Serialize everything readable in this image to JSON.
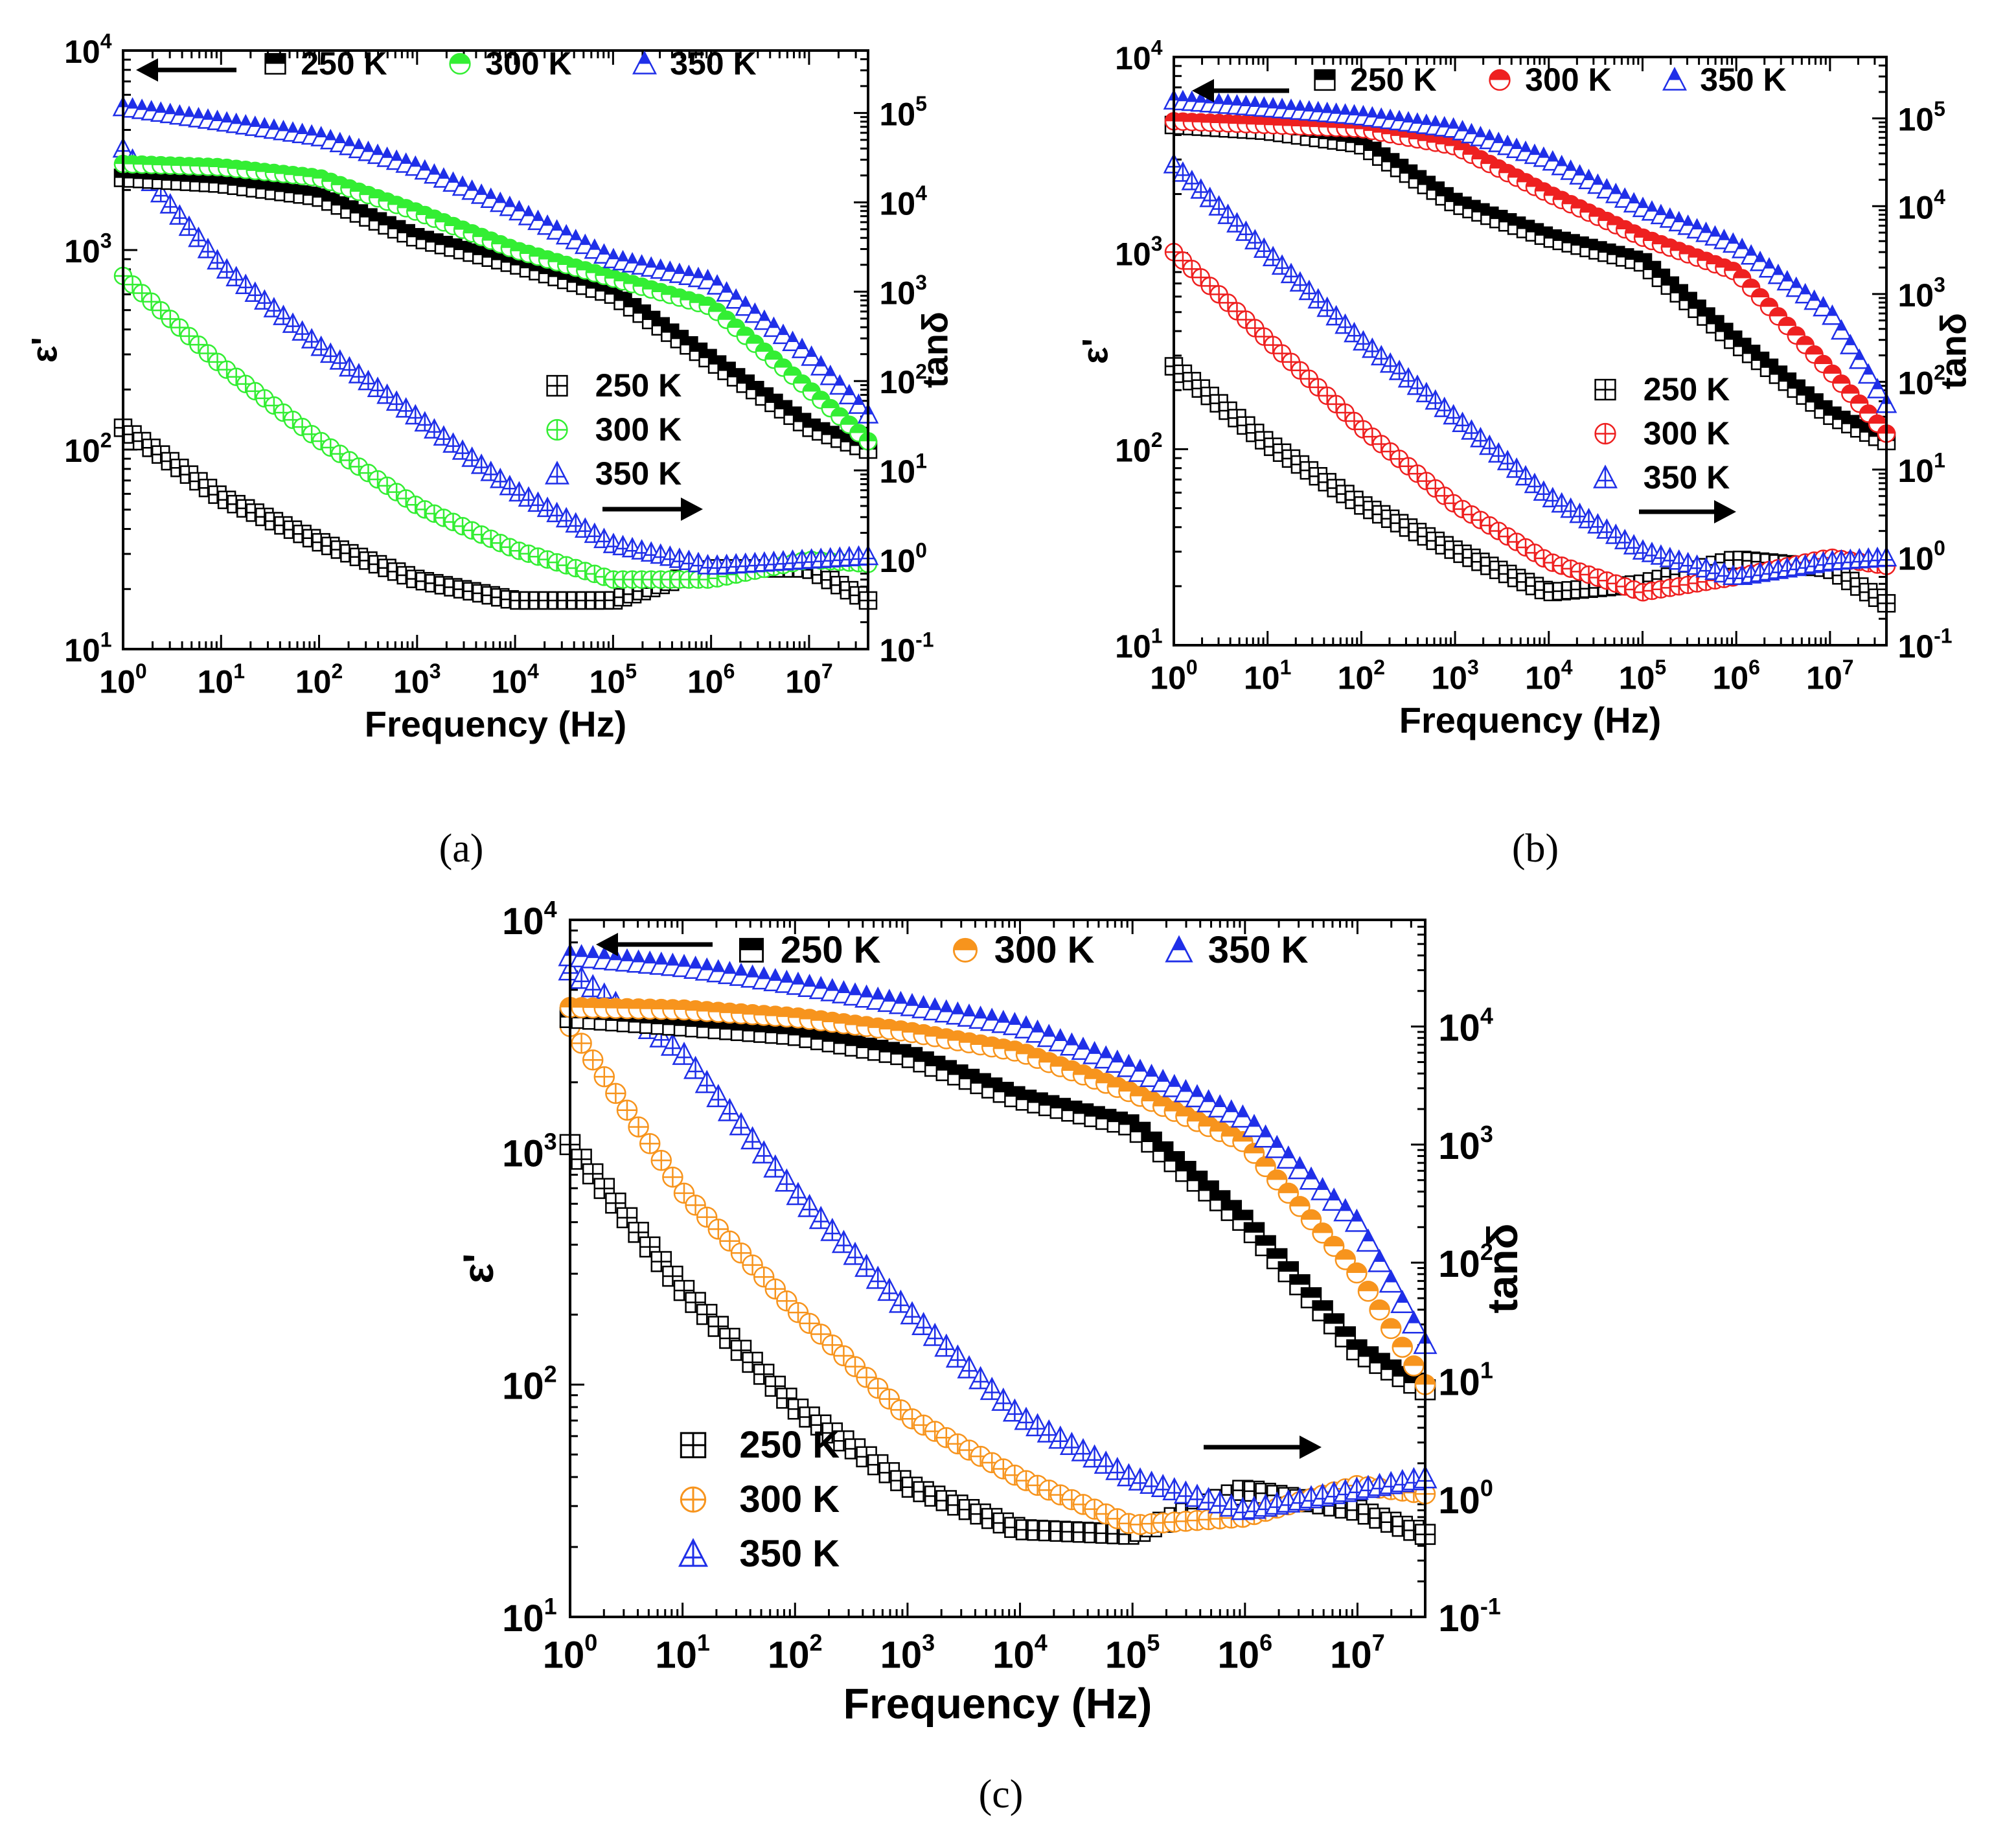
{
  "colors": {
    "250": "#000000",
    "300a": "#33ee33",
    "300b": "#ee2020",
    "300c": "#f7941d",
    "350": "#1f2fe8"
  },
  "chart_data": [
    {
      "id": "a",
      "caption": "(a)",
      "type": "scatter",
      "xlabel": "Frequency (Hz)",
      "ylabel": "ε'",
      "y2label": "tanδ",
      "xscale": "log",
      "yscale": "log",
      "y2scale": "log",
      "xlim": [
        1,
        40000000
      ],
      "ylim": [
        10,
        10000
      ],
      "y2lim": [
        0.1,
        500000
      ],
      "xticks": [
        {
          "v": 1,
          "base": "10",
          "exp": "0"
        },
        {
          "v": 10,
          "base": "10",
          "exp": "1"
        },
        {
          "v": 100,
          "base": "10",
          "exp": "2"
        },
        {
          "v": 1000,
          "base": "10",
          "exp": "3"
        },
        {
          "v": 10000,
          "base": "10",
          "exp": "4"
        },
        {
          "v": 100000,
          "base": "10",
          "exp": "5"
        },
        {
          "v": 1000000,
          "base": "10",
          "exp": "6"
        },
        {
          "v": 10000000,
          "base": "10",
          "exp": "7"
        }
      ],
      "yticks": [
        {
          "v": 10,
          "base": "10",
          "exp": "1"
        },
        {
          "v": 100,
          "base": "10",
          "exp": "2"
        },
        {
          "v": 1000,
          "base": "10",
          "exp": "3"
        },
        {
          "v": 10000,
          "base": "10",
          "exp": "4"
        }
      ],
      "y2ticks": [
        {
          "v": 0.1,
          "base": "10",
          "exp": "-1"
        },
        {
          "v": 1,
          "base": "10",
          "exp": "0"
        },
        {
          "v": 10,
          "base": "10",
          "exp": "1"
        },
        {
          "v": 100,
          "base": "10",
          "exp": "2"
        },
        {
          "v": 1000,
          "base": "10",
          "exp": "3"
        },
        {
          "v": 10000,
          "base": "10",
          "exp": "4"
        },
        {
          "v": 100000,
          "base": "10",
          "exp": "5"
        }
      ],
      "legend_top": [
        {
          "label": "250 K",
          "color_key": "250",
          "marker": "square-half"
        },
        {
          "label": "300 K",
          "color_key": "300a",
          "marker": "circle-half"
        },
        {
          "label": "350 K",
          "color_key": "350",
          "marker": "triangle-half"
        }
      ],
      "legend_bottom": [
        {
          "label": "250 K",
          "color_key": "250",
          "marker": "square-cross"
        },
        {
          "label": "300 K",
          "color_key": "300a",
          "marker": "circle-cross"
        },
        {
          "label": "350 K",
          "color_key": "350",
          "marker": "triangle-cross"
        }
      ],
      "eps_series": [
        {
          "name": "250 K",
          "color_key": "250",
          "marker": "square-half",
          "x": [
            1,
            10,
            100,
            1000,
            10000,
            100000,
            1000000,
            10000000,
            40000000
          ],
          "y": [
            2300,
            2150,
            1850,
            1150,
            850,
            600,
            280,
            130,
            100
          ]
        },
        {
          "name": "300 K",
          "color_key": "300a",
          "marker": "circle-half",
          "x": [
            1,
            10,
            100,
            1000,
            10000,
            100000,
            1000000,
            10000000,
            40000000
          ],
          "y": [
            2700,
            2600,
            2300,
            1550,
            1000,
            720,
            520,
            200,
            110
          ]
        },
        {
          "name": "350 K",
          "color_key": "350",
          "marker": "triangle-half",
          "x": [
            1,
            10,
            100,
            1000,
            10000,
            100000,
            1000000,
            10000000,
            40000000
          ],
          "y": [
            5200,
            4400,
            3700,
            2600,
            1600,
            900,
            700,
            300,
            150
          ]
        }
      ],
      "tan_series": [
        {
          "name": "250 K",
          "color_key": "250",
          "marker": "square-cross",
          "x": [
            1,
            10,
            100,
            1000,
            10000,
            100000,
            1000000,
            10000000,
            40000000
          ],
          "y": [
            30,
            5,
            1.6,
            0.6,
            0.35,
            0.35,
            0.8,
            0.8,
            0.35
          ]
        },
        {
          "name": "300 K",
          "color_key": "300a",
          "marker": "circle-cross",
          "x": [
            1,
            10,
            100,
            1000,
            10000,
            100000,
            1000000,
            10000000,
            40000000
          ],
          "y": [
            1500,
            150,
            22,
            4,
            1.3,
            0.6,
            0.6,
            1,
            0.9
          ]
        },
        {
          "name": "350 K",
          "color_key": "350",
          "marker": "triangle-cross",
          "x": [
            1,
            10,
            100,
            1000,
            10000,
            100000,
            1000000,
            10000000,
            40000000
          ],
          "y": [
            40000,
            2000,
            250,
            40,
            6,
            1.5,
            0.85,
            1,
            1.1
          ]
        }
      ]
    },
    {
      "id": "b",
      "caption": "(b)",
      "type": "scatter",
      "xlabel": "Frequency (Hz)",
      "ylabel": "ε'",
      "y2label": "tanδ",
      "xscale": "log",
      "yscale": "log",
      "y2scale": "log",
      "xlim": [
        1,
        40000000
      ],
      "ylim": [
        10,
        10000
      ],
      "y2lim": [
        0.1,
        500000
      ],
      "xticks": [
        {
          "v": 1,
          "base": "10",
          "exp": "0"
        },
        {
          "v": 10,
          "base": "10",
          "exp": "1"
        },
        {
          "v": 100,
          "base": "10",
          "exp": "2"
        },
        {
          "v": 1000,
          "base": "10",
          "exp": "3"
        },
        {
          "v": 10000,
          "base": "10",
          "exp": "4"
        },
        {
          "v": 100000,
          "base": "10",
          "exp": "5"
        },
        {
          "v": 1000000,
          "base": "10",
          "exp": "6"
        },
        {
          "v": 10000000,
          "base": "10",
          "exp": "7"
        }
      ],
      "yticks": [
        {
          "v": 10,
          "base": "10",
          "exp": "1"
        },
        {
          "v": 100,
          "base": "10",
          "exp": "2"
        },
        {
          "v": 1000,
          "base": "10",
          "exp": "3"
        },
        {
          "v": 10000,
          "base": "10",
          "exp": "4"
        }
      ],
      "y2ticks": [
        {
          "v": 0.1,
          "base": "10",
          "exp": "-1"
        },
        {
          "v": 1,
          "base": "10",
          "exp": "0"
        },
        {
          "v": 10,
          "base": "10",
          "exp": "1"
        },
        {
          "v": 100,
          "base": "10",
          "exp": "2"
        },
        {
          "v": 1000,
          "base": "10",
          "exp": "3"
        },
        {
          "v": 10000,
          "base": "10",
          "exp": "4"
        },
        {
          "v": 100000,
          "base": "10",
          "exp": "5"
        }
      ],
      "legend_top": [
        {
          "label": "250 K",
          "color_key": "250",
          "marker": "square-half"
        },
        {
          "label": "300 K",
          "color_key": "300b",
          "marker": "circle-half"
        },
        {
          "label": "350 K",
          "color_key": "350",
          "marker": "triangle-half"
        }
      ],
      "legend_bottom": [
        {
          "label": "250 K",
          "color_key": "250",
          "marker": "square-cross"
        },
        {
          "label": "300 K",
          "color_key": "300b",
          "marker": "circle-cross"
        },
        {
          "label": "350 K",
          "color_key": "350",
          "marker": "triangle-cross"
        }
      ],
      "eps_series": [
        {
          "name": "250 K",
          "color_key": "250",
          "marker": "square-half",
          "x": [
            1,
            10,
            100,
            1000,
            10000,
            100000,
            1000000,
            10000000,
            40000000
          ],
          "y": [
            4500,
            4200,
            3600,
            1800,
            1200,
            900,
            350,
            150,
            110
          ]
        },
        {
          "name": "300 K",
          "color_key": "300b",
          "marker": "circle-half",
          "x": [
            1,
            10,
            100,
            1000,
            10000,
            100000,
            1000000,
            10000000,
            40000000
          ],
          "y": [
            4700,
            4500,
            4300,
            3500,
            2000,
            1200,
            800,
            250,
            120
          ]
        },
        {
          "name": "350 K",
          "color_key": "350",
          "marker": "triangle-half",
          "x": [
            1,
            10,
            100,
            1000,
            10000,
            100000,
            1000000,
            10000000,
            40000000
          ],
          "y": [
            6000,
            5500,
            5000,
            4300,
            3000,
            1700,
            1100,
            500,
            170
          ]
        }
      ],
      "tan_series": [
        {
          "name": "250 K",
          "color_key": "250",
          "marker": "square-cross",
          "x": [
            1,
            10,
            100,
            1000,
            10000,
            100000,
            1000000,
            10000000,
            40000000
          ],
          "y": [
            150,
            20,
            4,
            1.2,
            0.4,
            0.5,
            0.95,
            0.75,
            0.3
          ]
        },
        {
          "name": "300 K",
          "color_key": "300b",
          "marker": "circle-cross",
          "x": [
            1,
            10,
            100,
            1000,
            10000,
            100000,
            1000000,
            10000000,
            40000000
          ],
          "y": [
            3000,
            300,
            30,
            4,
            0.9,
            0.4,
            0.6,
            1,
            0.8
          ]
        },
        {
          "name": "350 K",
          "color_key": "350",
          "marker": "triangle-cross",
          "x": [
            1,
            10,
            100,
            1000,
            10000,
            100000,
            1000000,
            10000000,
            40000000
          ],
          "y": [
            30000,
            3000,
            300,
            40,
            5,
            1.2,
            0.6,
            0.9,
            1
          ]
        }
      ]
    },
    {
      "id": "c",
      "caption": "(c)",
      "type": "scatter",
      "xlabel": "Frequency (Hz)",
      "ylabel": "ε'",
      "y2label": "tanδ",
      "xscale": "log",
      "yscale": "log",
      "y2scale": "log",
      "xlim": [
        1,
        40000000
      ],
      "ylim": [
        10,
        10000
      ],
      "y2lim": [
        0.1,
        80000
      ],
      "xticks": [
        {
          "v": 1,
          "base": "10",
          "exp": "0"
        },
        {
          "v": 10,
          "base": "10",
          "exp": "1"
        },
        {
          "v": 100,
          "base": "10",
          "exp": "2"
        },
        {
          "v": 1000,
          "base": "10",
          "exp": "3"
        },
        {
          "v": 10000,
          "base": "10",
          "exp": "4"
        },
        {
          "v": 100000,
          "base": "10",
          "exp": "5"
        },
        {
          "v": 1000000,
          "base": "10",
          "exp": "6"
        },
        {
          "v": 10000000,
          "base": "10",
          "exp": "7"
        }
      ],
      "yticks": [
        {
          "v": 10,
          "base": "10",
          "exp": "1"
        },
        {
          "v": 100,
          "base": "10",
          "exp": "2"
        },
        {
          "v": 1000,
          "base": "10",
          "exp": "3"
        },
        {
          "v": 10000,
          "base": "10",
          "exp": "4"
        }
      ],
      "y2ticks": [
        {
          "v": 0.1,
          "base": "10",
          "exp": "-1"
        },
        {
          "v": 1,
          "base": "10",
          "exp": "0"
        },
        {
          "v": 10,
          "base": "10",
          "exp": "1"
        },
        {
          "v": 100,
          "base": "10",
          "exp": "2"
        },
        {
          "v": 1000,
          "base": "10",
          "exp": "3"
        },
        {
          "v": 10000,
          "base": "10",
          "exp": "4"
        }
      ],
      "legend_top": [
        {
          "label": "250 K",
          "color_key": "250",
          "marker": "square-half"
        },
        {
          "label": "300 K",
          "color_key": "300c",
          "marker": "circle-half"
        },
        {
          "label": "350 K",
          "color_key": "350",
          "marker": "triangle-half"
        }
      ],
      "legend_bottom": [
        {
          "label": "250 K",
          "color_key": "250",
          "marker": "square-cross"
        },
        {
          "label": "300 K",
          "color_key": "300c",
          "marker": "circle-cross"
        },
        {
          "label": "350 K",
          "color_key": "350",
          "marker": "triangle-cross"
        }
      ],
      "eps_series": [
        {
          "name": "250 K",
          "color_key": "250",
          "marker": "square-half",
          "x": [
            1,
            10,
            100,
            1000,
            10000,
            100000,
            1000000,
            10000000,
            40000000
          ],
          "y": [
            3800,
            3500,
            3200,
            2600,
            1700,
            1300,
            500,
            140,
            95
          ]
        },
        {
          "name": "300 K",
          "color_key": "300c",
          "marker": "circle-half",
          "x": [
            1,
            10,
            100,
            1000,
            10000,
            100000,
            1000000,
            10000000,
            40000000
          ],
          "y": [
            4200,
            4100,
            3800,
            3300,
            2700,
            1800,
            1100,
            300,
            100
          ]
        },
        {
          "name": "350 K",
          "color_key": "350",
          "marker": "triangle-half",
          "x": [
            1,
            10,
            100,
            1000,
            10000,
            100000,
            1000000,
            10000000,
            40000000
          ],
          "y": [
            7000,
            6300,
            5300,
            4300,
            3500,
            2300,
            1400,
            500,
            150
          ]
        }
      ],
      "tan_series": [
        {
          "name": "250 K",
          "color_key": "250",
          "marker": "square-cross",
          "x": [
            1,
            10,
            100,
            1000,
            10000,
            100000,
            1000000,
            10000000,
            40000000
          ],
          "y": [
            1000,
            60,
            6,
            1.3,
            0.55,
            0.5,
            1.2,
            0.8,
            0.5
          ]
        },
        {
          "name": "300 K",
          "color_key": "300c",
          "marker": "circle-cross",
          "x": [
            1,
            10,
            100,
            1000,
            10000,
            100000,
            1000000,
            10000000,
            40000000
          ],
          "y": [
            10000,
            400,
            40,
            5,
            1.5,
            0.6,
            0.7,
            1.3,
            1.1
          ]
        },
        {
          "name": "350 K",
          "color_key": "350",
          "marker": "triangle-cross",
          "x": [
            1,
            10,
            100,
            1000,
            10000,
            100000,
            1000000,
            10000000,
            40000000
          ],
          "y": [
            30000,
            6000,
            400,
            40,
            5,
            1.5,
            0.8,
            1.2,
            1.5
          ]
        }
      ]
    }
  ]
}
